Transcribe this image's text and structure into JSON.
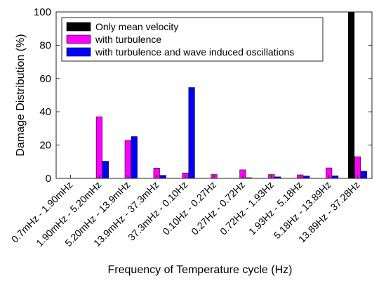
{
  "chart_data": {
    "type": "bar",
    "title": "",
    "xlabel": "Frequency of Temperature cycle (Hz)",
    "ylabel": "Damage Distribution (%)",
    "ylim": [
      0,
      100
    ],
    "yticks": [
      0,
      20,
      40,
      60,
      80,
      100
    ],
    "grid": false,
    "legend_position": "top-left",
    "categories": [
      "0.7mHz - 1.90mHz",
      "1.90mHz - 5.20mHz",
      "5.20mHz - 13.9mHz",
      "13.9mHz - 37.3mHz",
      "37.3mHz - 0.10Hz",
      "0.10Hz - 0.27Hz",
      "0.27Hz - 0.72Hz",
      "0.72Hz - 1.93Hz",
      "1.93Hz - 5.18Hz",
      "5.18Hz - 13.89Hz",
      "13.89Hz - 37.28Hz"
    ],
    "series": [
      {
        "name": "Only mean velocity",
        "color": "#000000",
        "values": [
          0,
          0,
          0,
          0,
          0,
          0,
          0,
          0,
          0,
          0,
          100
        ]
      },
      {
        "name": "with turbulence",
        "color": "#ff00ff",
        "values": [
          0,
          37,
          22.8,
          6.2,
          3.2,
          2.3,
          5.1,
          2.3,
          2.1,
          6.3,
          13
        ]
      },
      {
        "name": "with turbulence and wave induced oscillations",
        "color": "#0000ff",
        "values": [
          0,
          10.3,
          25.1,
          1.8,
          54.6,
          0,
          0.4,
          0.9,
          1.4,
          1.5,
          4.3
        ]
      }
    ]
  }
}
